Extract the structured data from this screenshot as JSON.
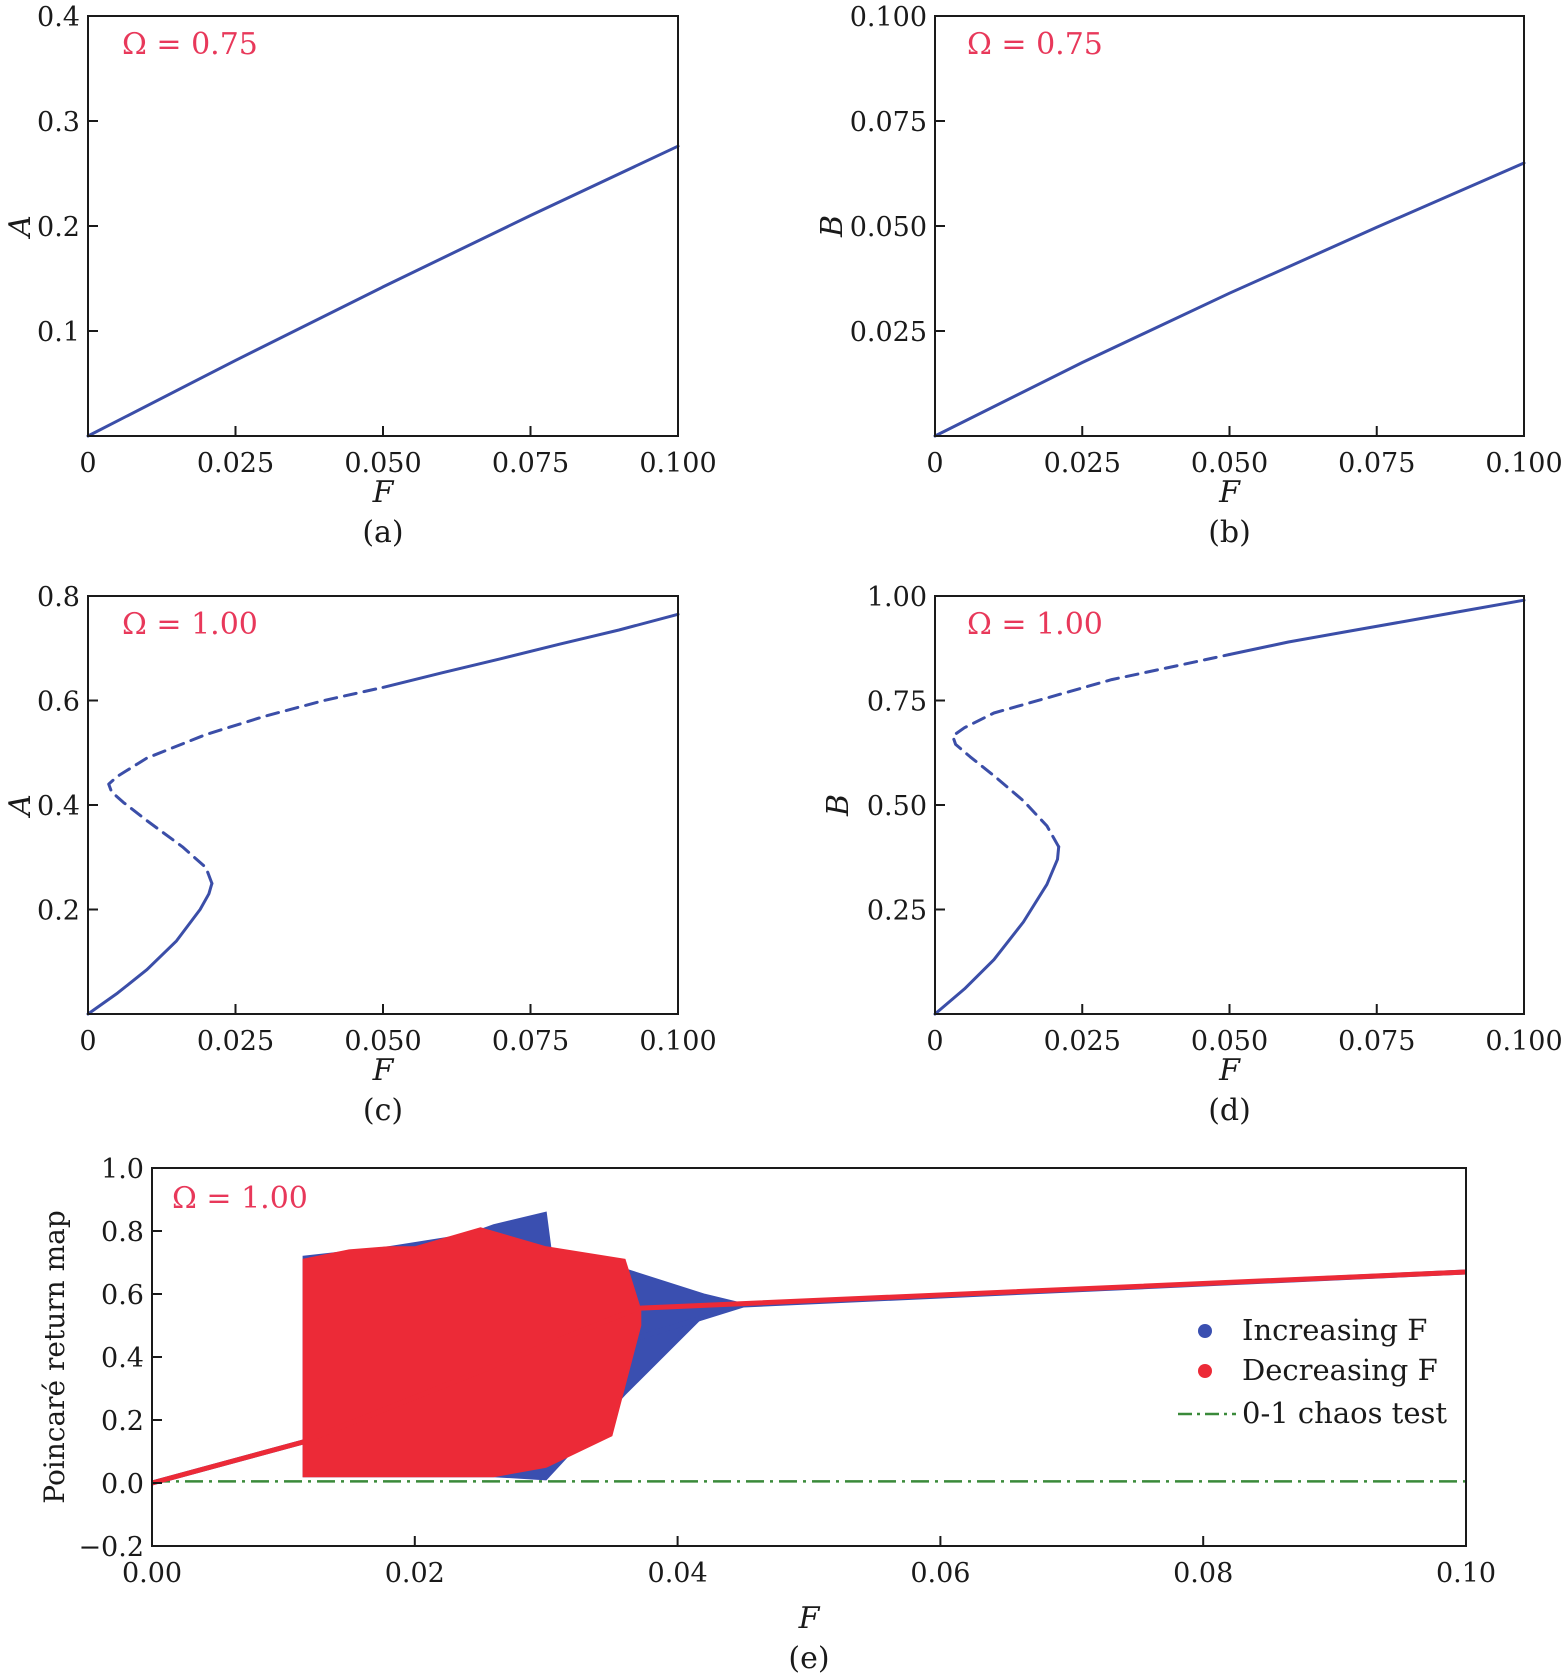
{
  "colors": {
    "curve": "#3b4ea8",
    "increasing": "#3a4fb0",
    "decreasing": "#ec2a37",
    "chaos": "#3a8a3a",
    "annotation": "#e8385a",
    "axis": "#1a1a1a"
  },
  "chart_data": [
    {
      "id": "a",
      "type": "line",
      "caption": "(a)",
      "annotation": "Ω = 0.75",
      "xlabel": "F",
      "ylabel": "A",
      "xlim": [
        0,
        0.1
      ],
      "ylim": [
        0,
        0.4
      ],
      "xticks": [
        0,
        0.025,
        0.05,
        0.075,
        0.1
      ],
      "xtick_labels": [
        "0",
        "0.025",
        "0.050",
        "0.075",
        "0.100"
      ],
      "yticks": [
        0.1,
        0.2,
        0.3,
        0.4
      ],
      "ytick_labels": [
        "0.1",
        "0.2",
        "0.3",
        "0.4"
      ],
      "series": [
        {
          "style": "solid",
          "x": [
            0,
            0.025,
            0.05,
            0.075,
            0.1
          ],
          "y": [
            0,
            0.072,
            0.142,
            0.21,
            0.276
          ]
        }
      ]
    },
    {
      "id": "b",
      "type": "line",
      "caption": "(b)",
      "annotation": "Ω = 0.75",
      "xlabel": "F",
      "ylabel": "B",
      "xlim": [
        0,
        0.1
      ],
      "ylim": [
        0,
        0.1
      ],
      "xticks": [
        0,
        0.025,
        0.05,
        0.075,
        0.1
      ],
      "xtick_labels": [
        "0",
        "0.025",
        "0.050",
        "0.075",
        "0.100"
      ],
      "yticks": [
        0.025,
        0.05,
        0.075,
        0.1
      ],
      "ytick_labels": [
        "0.025",
        "0.050",
        "0.075",
        "0.100"
      ],
      "series": [
        {
          "style": "solid",
          "x": [
            0,
            0.025,
            0.05,
            0.075,
            0.1
          ],
          "y": [
            0,
            0.0175,
            0.034,
            0.0497,
            0.065
          ]
        }
      ]
    },
    {
      "id": "c",
      "type": "line",
      "caption": "(c)",
      "annotation": "Ω = 1.00",
      "xlabel": "F",
      "ylabel": "A",
      "xlim": [
        0,
        0.1
      ],
      "ylim": [
        0,
        0.8
      ],
      "xticks": [
        0,
        0.025,
        0.05,
        0.075,
        0.1
      ],
      "xtick_labels": [
        "0",
        "0.025",
        "0.050",
        "0.075",
        "0.100"
      ],
      "yticks": [
        0.2,
        0.4,
        0.6,
        0.8
      ],
      "ytick_labels": [
        "0.2",
        "0.4",
        "0.6",
        "0.8"
      ],
      "series": [
        {
          "style": "solid",
          "x": [
            0,
            0.005,
            0.01,
            0.015,
            0.019,
            0.0205,
            0.021
          ],
          "y": [
            0,
            0.04,
            0.085,
            0.14,
            0.2,
            0.23,
            0.25
          ]
        },
        {
          "style": "dashed",
          "x": [
            0.021,
            0.02,
            0.016,
            0.01,
            0.006,
            0.004,
            0.0035,
            0.005,
            0.01,
            0.02,
            0.03,
            0.04,
            0.05
          ],
          "y": [
            0.25,
            0.28,
            0.32,
            0.37,
            0.405,
            0.425,
            0.44,
            0.455,
            0.49,
            0.535,
            0.57,
            0.6,
            0.625
          ]
        },
        {
          "style": "solid",
          "x": [
            0.05,
            0.06,
            0.07,
            0.08,
            0.09,
            0.1
          ],
          "y": [
            0.625,
            0.653,
            0.68,
            0.708,
            0.735,
            0.765
          ]
        }
      ]
    },
    {
      "id": "d",
      "type": "line",
      "caption": "(d)",
      "annotation": "Ω = 1.00",
      "xlabel": "F",
      "ylabel": "B",
      "xlim": [
        0,
        0.1
      ],
      "ylim": [
        0,
        1.0
      ],
      "xticks": [
        0,
        0.025,
        0.05,
        0.075,
        0.1
      ],
      "xtick_labels": [
        "0",
        "0.025",
        "0.050",
        "0.075",
        "0.100"
      ],
      "yticks": [
        0.25,
        0.5,
        0.75,
        1.0
      ],
      "ytick_labels": [
        "0.25",
        "0.50",
        "0.75",
        "1.00"
      ],
      "series": [
        {
          "style": "solid",
          "x": [
            0,
            0.005,
            0.01,
            0.015,
            0.019,
            0.0208,
            0.021
          ],
          "y": [
            0,
            0.06,
            0.13,
            0.22,
            0.31,
            0.37,
            0.4
          ]
        },
        {
          "style": "dashed",
          "x": [
            0.021,
            0.019,
            0.015,
            0.01,
            0.006,
            0.0035,
            0.003,
            0.005,
            0.01,
            0.02,
            0.03,
            0.04,
            0.05
          ],
          "y": [
            0.4,
            0.45,
            0.51,
            0.57,
            0.615,
            0.645,
            0.665,
            0.685,
            0.72,
            0.76,
            0.8,
            0.83,
            0.86
          ]
        },
        {
          "style": "solid",
          "x": [
            0.05,
            0.06,
            0.07,
            0.08,
            0.09,
            0.1
          ],
          "y": [
            0.86,
            0.89,
            0.915,
            0.94,
            0.965,
            0.99
          ]
        }
      ]
    },
    {
      "id": "e",
      "type": "scatter",
      "caption": "(e)",
      "annotation": "Ω = 1.00",
      "xlabel": "F",
      "ylabel": "Poincaré return map",
      "xlim": [
        0,
        0.1
      ],
      "ylim": [
        -0.2,
        1.0
      ],
      "xticks": [
        0,
        0.02,
        0.04,
        0.06,
        0.08,
        0.1
      ],
      "xtick_labels": [
        "0.00",
        "0.02",
        "0.04",
        "0.06",
        "0.08",
        "0.10"
      ],
      "yticks": [
        -0.2,
        0,
        0.2,
        0.4,
        0.6,
        0.8,
        1.0
      ],
      "ytick_labels": [
        "−0.2",
        "0.0",
        "0.2",
        "0.4",
        "0.6",
        "0.8",
        "1.0"
      ],
      "legend_position": "right",
      "series": [
        {
          "name": "Increasing F",
          "role": "increasing",
          "band_top": [
            [
              0.0115,
              0.72
            ],
            [
              0.018,
              0.75
            ],
            [
              0.024,
              0.79
            ],
            [
              0.026,
              0.82
            ],
            [
              0.03,
              0.86
            ],
            [
              0.0305,
              0.7
            ],
            [
              0.036,
              0.68
            ],
            [
              0.042,
              0.6
            ],
            [
              0.045,
              0.57
            ]
          ],
          "band_bottom": [
            [
              0.0115,
              0.02
            ],
            [
              0.02,
              0.02
            ],
            [
              0.026,
              0.02
            ],
            [
              0.03,
              0.01
            ],
            [
              0.036,
              0.28
            ],
            [
              0.042,
              0.53
            ],
            [
              0.045,
              0.56
            ]
          ],
          "line": [
            [
              0,
              0.0
            ],
            [
              0.0115,
              0.13
            ],
            [
              0.045,
              0.565
            ],
            [
              0.1,
              0.67
            ]
          ]
        },
        {
          "name": "Decreasing F",
          "role": "decreasing",
          "band_top": [
            [
              0.0115,
              0.71
            ],
            [
              0.015,
              0.74
            ],
            [
              0.018,
              0.75
            ],
            [
              0.02,
              0.75
            ],
            [
              0.025,
              0.81
            ],
            [
              0.03,
              0.75
            ],
            [
              0.036,
              0.71
            ],
            [
              0.0372,
              0.55
            ]
          ],
          "band_bottom": [
            [
              0.0115,
              0.02
            ],
            [
              0.02,
              0.02
            ],
            [
              0.024,
              0.02
            ],
            [
              0.026,
              0.02
            ],
            [
              0.03,
              0.05
            ],
            [
              0.035,
              0.15
            ],
            [
              0.0372,
              0.5
            ]
          ],
          "line": [
            [
              0,
              0.0
            ],
            [
              0.0115,
              0.13
            ],
            [
              0.037,
              0.555
            ],
            [
              0.1,
              0.67
            ]
          ]
        },
        {
          "name": "0-1 chaos test",
          "role": "chaos",
          "style": "dashdot",
          "x": [
            0,
            0.1
          ],
          "y": [
            0.005,
            0.005
          ]
        }
      ]
    }
  ]
}
